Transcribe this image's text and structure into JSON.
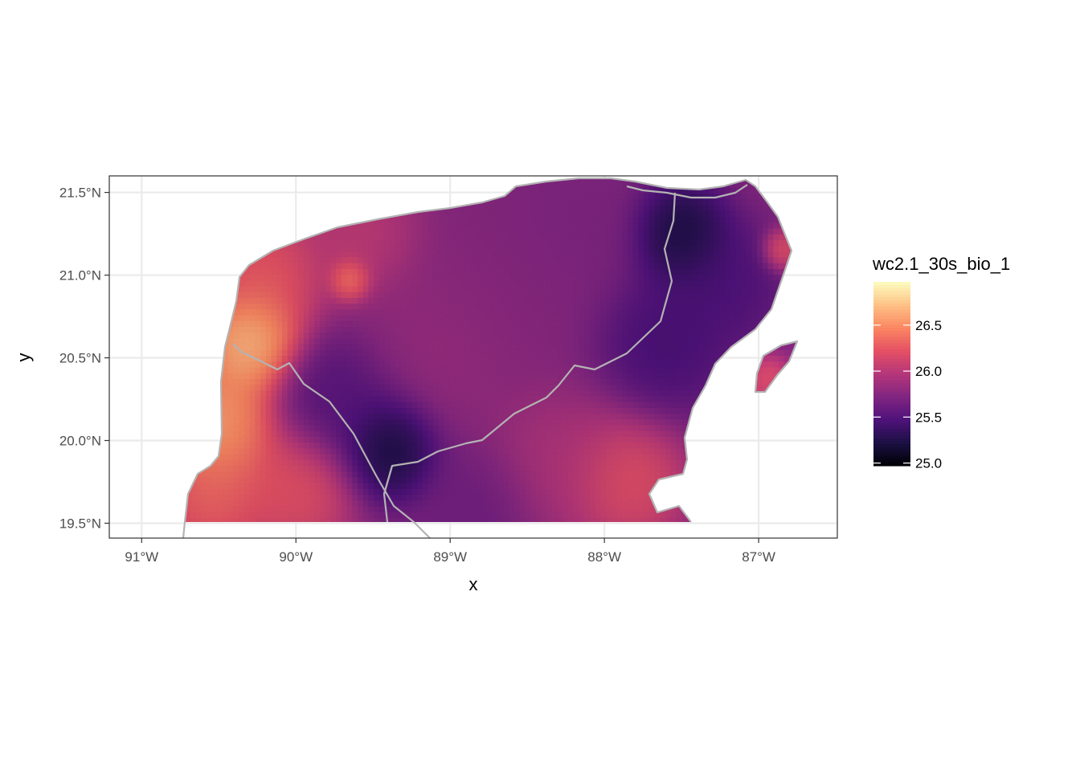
{
  "chart_data": {
    "type": "heatmap",
    "subtype": "raster map",
    "xlabel": "x",
    "ylabel": "y",
    "x_ticks": [
      {
        "value": -91,
        "label": "91°W"
      },
      {
        "value": -90,
        "label": "90°W"
      },
      {
        "value": -89,
        "label": "89°W"
      },
      {
        "value": -88,
        "label": "88°W"
      },
      {
        "value": -87,
        "label": "87°W"
      }
    ],
    "y_ticks": [
      {
        "value": 21.5,
        "label": "21.5°N"
      },
      {
        "value": 21.0,
        "label": "21.0°N"
      },
      {
        "value": 20.5,
        "label": "20.5°N"
      },
      {
        "value": 20.0,
        "label": "20.0°N"
      },
      {
        "value": 19.5,
        "label": "19.5°N"
      }
    ],
    "xlim": [
      -91.21,
      -86.49
    ],
    "ylim": [
      19.41,
      21.6
    ],
    "grid": true,
    "legend": {
      "title": "wc2.1_30s_bio_1",
      "placement": "right",
      "colormap": "magma",
      "colors": [
        "#000004",
        "#1c1044",
        "#4f127b",
        "#812581",
        "#b5367a",
        "#e55064",
        "#fb8761",
        "#fec287",
        "#fcfdbf"
      ],
      "range": [
        24.97,
        26.97
      ],
      "breaks": [
        25.0,
        25.5,
        26.0,
        26.5
      ],
      "labels": [
        "25.0",
        "25.5",
        "26.0",
        "26.5"
      ]
    },
    "raster_extent": {
      "x": [
        -90.72,
        -86.75
      ],
      "y": [
        19.5,
        21.6
      ]
    },
    "value_field": [
      {
        "lon": -90.3,
        "lat": 20.6,
        "value": 26.95,
        "spread": 0.25
      },
      {
        "lon": -90.5,
        "lat": 20.1,
        "value": 26.8,
        "spread": 0.3
      },
      {
        "lon": -90.55,
        "lat": 19.65,
        "value": 26.45,
        "spread": 0.3
      },
      {
        "lon": -90.0,
        "lat": 19.7,
        "value": 26.35,
        "spread": 0.3
      },
      {
        "lon": -90.2,
        "lat": 21.0,
        "value": 26.4,
        "spread": 0.3
      },
      {
        "lon": -89.65,
        "lat": 20.98,
        "value": 26.6,
        "spread": 0.1
      },
      {
        "lon": -89.6,
        "lat": 21.25,
        "value": 26.1,
        "spread": 0.3
      },
      {
        "lon": -89.4,
        "lat": 19.95,
        "value": 25.05,
        "spread": 0.25
      },
      {
        "lon": -89.75,
        "lat": 20.25,
        "value": 25.45,
        "spread": 0.3
      },
      {
        "lon": -89.0,
        "lat": 20.6,
        "value": 25.85,
        "spread": 0.4
      },
      {
        "lon": -88.6,
        "lat": 20.9,
        "value": 25.75,
        "spread": 0.4
      },
      {
        "lon": -88.8,
        "lat": 19.6,
        "value": 25.6,
        "spread": 0.3
      },
      {
        "lon": -88.3,
        "lat": 19.85,
        "value": 26.0,
        "spread": 0.35
      },
      {
        "lon": -87.85,
        "lat": 19.75,
        "value": 26.35,
        "spread": 0.3
      },
      {
        "lon": -87.5,
        "lat": 21.25,
        "value": 25.05,
        "spread": 0.25
      },
      {
        "lon": -87.6,
        "lat": 20.6,
        "value": 25.35,
        "spread": 0.35
      },
      {
        "lon": -87.2,
        "lat": 20.95,
        "value": 25.4,
        "spread": 0.3
      },
      {
        "lon": -86.85,
        "lat": 21.15,
        "value": 26.4,
        "spread": 0.1
      },
      {
        "lon": -86.95,
        "lat": 20.38,
        "value": 26.3,
        "spread": 0.12
      },
      {
        "lon": -88.2,
        "lat": 21.3,
        "value": 25.7,
        "spread": 0.35
      }
    ],
    "base_value": 25.75,
    "outline_color": "#b3b3b3"
  }
}
